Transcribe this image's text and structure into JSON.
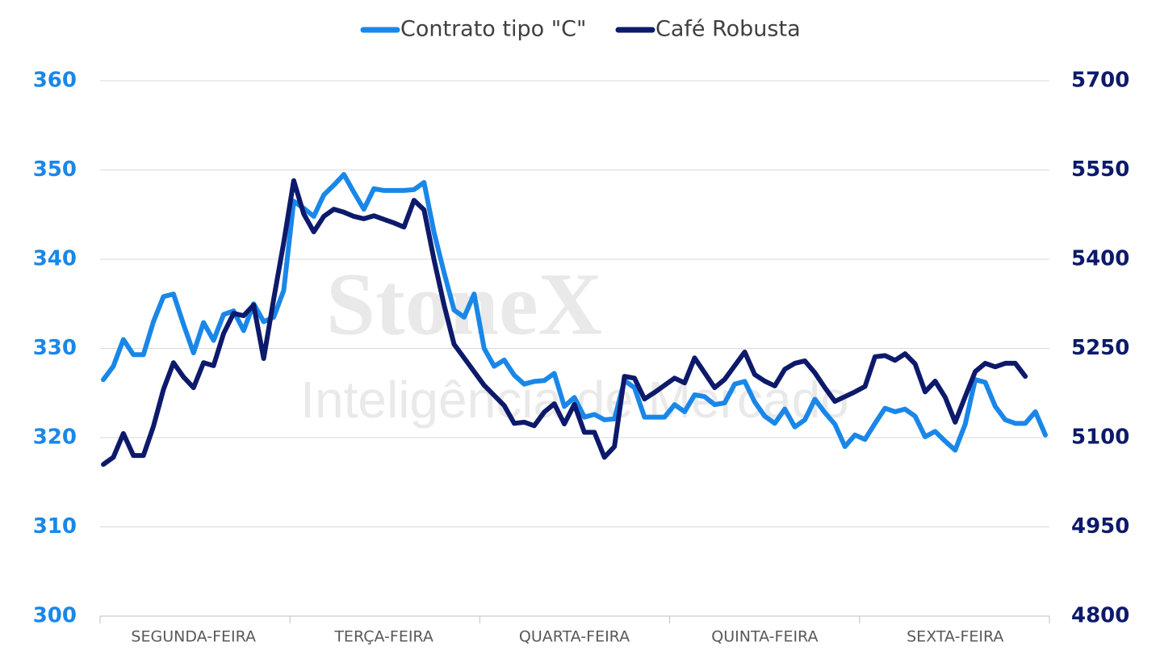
{
  "chart_data": {
    "type": "line",
    "watermark": {
      "brand": "StoneX",
      "tagline": "Inteligência de Mercado"
    },
    "categories": [
      null,
      null,
      null,
      null,
      null,
      null,
      null,
      null,
      null,
      "SEGUNDA-FEIRA",
      null,
      null,
      null,
      null,
      null,
      null,
      null,
      null,
      null,
      null,
      null,
      null,
      null,
      null,
      null,
      null,
      null,
      null,
      "TERÇA-FEIRA",
      null,
      null,
      null,
      null,
      null,
      null,
      null,
      null,
      null,
      null,
      null,
      null,
      null,
      null,
      null,
      null,
      null,
      null,
      "QUARTA-FEIRA",
      null,
      null,
      null,
      null,
      null,
      null,
      null,
      null,
      null,
      null,
      null,
      null,
      null,
      null,
      null,
      null,
      null,
      null,
      "QUINTA-FEIRA",
      null,
      null,
      null,
      null,
      null,
      null,
      null,
      null,
      null,
      null,
      null,
      null,
      null,
      null,
      null,
      null,
      null,
      null,
      "SEXTA-FEIRA",
      null,
      null,
      null,
      null,
      null,
      null,
      null,
      null,
      null
    ],
    "series": [
      {
        "name": "Contrato tipo \"C\"",
        "color": "#1a87e8",
        "axis": "y",
        "values": [
          326.5,
          328,
          331,
          329.3,
          329.3,
          333,
          335.8,
          336.1,
          332.7,
          329.5,
          332.9,
          330.9,
          333.8,
          334.2,
          332,
          335,
          333,
          333.5,
          336.5,
          346.5,
          345.7,
          344.8,
          347.2,
          348.3,
          349.5,
          347.5,
          345.6,
          347.9,
          347.7,
          347.7,
          347.7,
          347.8,
          348.6,
          343,
          338.5,
          334.3,
          333.5,
          336.1,
          330,
          328,
          328.7,
          327,
          326,
          326.3,
          326.4,
          327.2,
          323.5,
          324.5,
          322.3,
          322.6,
          322,
          322.1,
          326.4,
          325.6,
          322.3,
          322.3,
          322.3,
          323.7,
          322.9,
          324.8,
          324.6,
          323.7,
          323.9,
          326,
          326.3,
          324,
          322.4,
          321.6,
          323.2,
          321.2,
          322,
          324.3,
          322.8,
          321.5,
          319,
          320.3,
          319.8,
          321.6,
          323.3,
          322.9,
          323.2,
          322.4,
          320.1,
          320.7,
          319.6,
          318.6,
          321.5,
          326.5,
          326.2,
          323.5,
          322,
          321.6,
          321.6,
          322.9,
          320.3
        ]
      },
      {
        "name": "Café Robusta",
        "color": "#0d1a6b",
        "axis": "y2",
        "values": [
          5055,
          5067,
          5107,
          5070,
          5070,
          5119,
          5181,
          5226,
          5202,
          5184,
          5226,
          5221,
          5275,
          5309,
          5305,
          5323,
          5233,
          5333,
          5428,
          5532,
          5476,
          5446,
          5472,
          5484,
          5479,
          5472,
          5468,
          5473,
          5467,
          5461,
          5454,
          5499,
          5483,
          5399,
          5323,
          5257,
          5234,
          5211,
          5188,
          5171,
          5154,
          5124,
          5126,
          5120,
          5143,
          5157,
          5123,
          5156,
          5109,
          5109,
          5067,
          5085,
          5203,
          5200,
          5165,
          5176,
          5188,
          5200,
          5192,
          5234,
          5209,
          5184,
          5198,
          5221,
          5244,
          5206,
          5195,
          5187,
          5215,
          5225,
          5229,
          5209,
          5184,
          5161,
          5169,
          5177,
          5186,
          5236,
          5238,
          5230,
          5241,
          5224,
          5177,
          5195,
          5168,
          5126,
          5169,
          5211,
          5225,
          5219,
          5225,
          5225,
          5203,
          null,
          null
        ]
      }
    ],
    "ylim": [
      300,
      360
    ],
    "yticks": [
      300,
      310,
      320,
      330,
      340,
      350,
      360
    ],
    "y2lim": [
      4800,
      5700
    ],
    "y2ticks": [
      4800,
      4950,
      5100,
      5250,
      5400,
      5550,
      5700
    ],
    "grid": true,
    "legend": "top"
  }
}
